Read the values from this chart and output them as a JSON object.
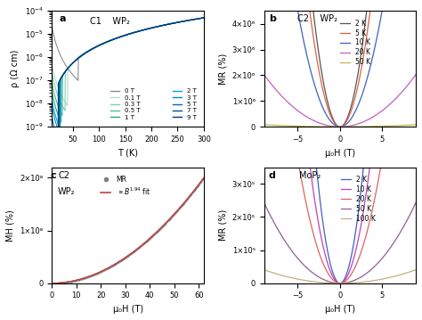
{
  "panel_a": {
    "title": "C1    WP₂",
    "xlabel": "T (K)",
    "ylabel": "ρ (Ω cm)",
    "xlim": [
      10,
      300
    ],
    "fields": [
      "0 T",
      "0.1 T",
      "0.3 T",
      "0.5 T",
      "1 T",
      "2 T",
      "3 T",
      "5 T",
      "7 T",
      "9 T"
    ],
    "colors_a": [
      "#8c8c8c",
      "#b5ddd0",
      "#80ccba",
      "#50bba0",
      "#20aa88",
      "#00a8cc",
      "#0090be",
      "#0070a8",
      "#005090",
      "#003878"
    ]
  },
  "panel_b": {
    "title": "C2    WP₂",
    "xlabel": "μ₀H (T)",
    "ylabel": "MR (%)",
    "xlim": [
      -9,
      9
    ],
    "ylim": [
      0,
      4500000.0
    ],
    "temps": [
      "2 K",
      "5 K",
      "10 K",
      "20 K",
      "50 K"
    ],
    "colors": [
      "#555555",
      "#e06040",
      "#4060c0",
      "#c060c0",
      "#c0b840"
    ],
    "mr_scales": [
      450000.0,
      350000.0,
      180000.0,
      25000.0,
      1000.0
    ]
  },
  "panel_c": {
    "title1": "C2",
    "title2": "WP₂",
    "xlabel": "μ₀H (T)",
    "ylabel": "MH (%)",
    "xlim": [
      0,
      62
    ],
    "ylim": [
      0,
      220000000.0
    ],
    "legend1": "MR",
    "data_color": "#808080",
    "fit_color": "#c04040",
    "exponent": 1.94,
    "max_val": 200000000.0
  },
  "panel_d": {
    "title": "MoP₂",
    "xlabel": "μ₀H (T)",
    "ylabel": "MR (%)",
    "xlim": [
      -9,
      9
    ],
    "ylim": [
      0,
      350000.0
    ],
    "temps": [
      "2 K",
      "10 K",
      "20 K",
      "50 K",
      "100 K"
    ],
    "colors": [
      "#4060c0",
      "#c040c0",
      "#e06060",
      "#906090",
      "#c0b080"
    ],
    "mr_scales": [
      45000.0,
      28000.0,
      15000.0,
      3000.0,
      500.0
    ]
  }
}
